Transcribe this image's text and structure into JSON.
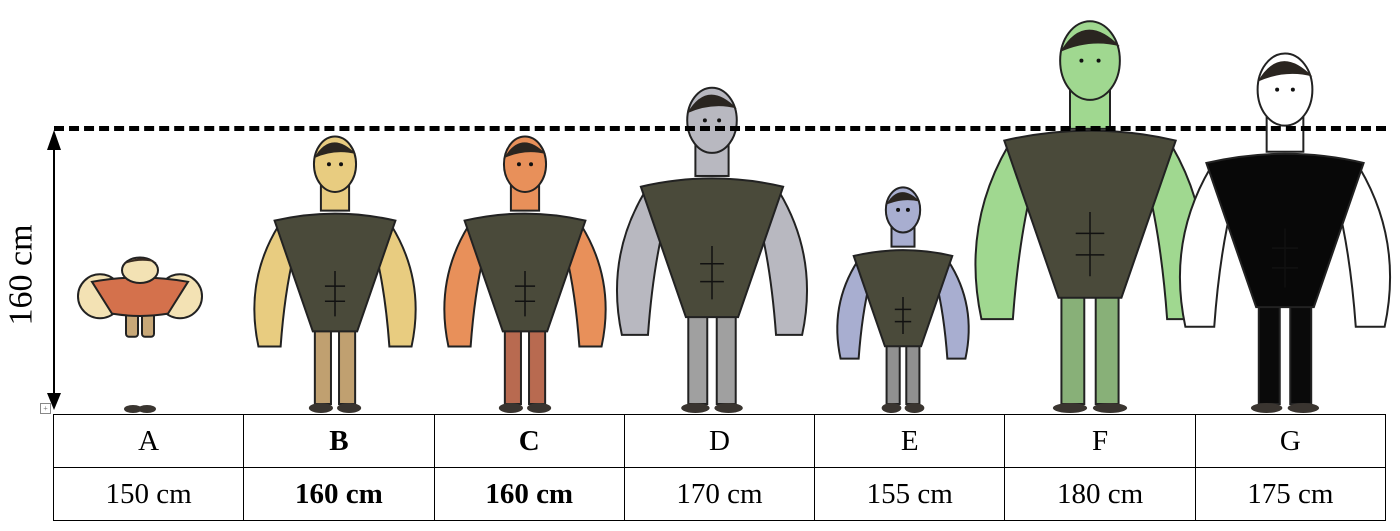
{
  "axis_label": "160 cm",
  "figures": [
    {
      "letter": "A",
      "height": "150 cm",
      "bold": false,
      "skin": "#f3e2b4",
      "shirt": "#d4714c",
      "pants": "#c8a878"
    },
    {
      "letter": "B",
      "height": "160 cm",
      "bold": true,
      "skin": "#e8cc80",
      "shirt": "#4a4a3a",
      "pants": "#c0a070"
    },
    {
      "letter": "C",
      "height": "160 cm",
      "bold": true,
      "skin": "#e8905a",
      "shirt": "#4a4a3a",
      "pants": "#b86a50"
    },
    {
      "letter": "D",
      "height": "170 cm",
      "bold": false,
      "skin": "#b8b8c0",
      "shirt": "#4a4a3a",
      "pants": "#a0a0a0"
    },
    {
      "letter": "E",
      "height": "155 cm",
      "bold": false,
      "skin": "#a8aed0",
      "shirt": "#4a4a3a",
      "pants": "#909090"
    },
    {
      "letter": "F",
      "height": "180 cm",
      "bold": false,
      "skin": "#a0d890",
      "shirt": "#4a4a3a",
      "pants": "#88b078"
    },
    {
      "letter": "G",
      "height": "175 cm",
      "bold": false,
      "skin": "#ffffff",
      "shirt": "#080808",
      "pants": "#0a0a0a"
    }
  ]
}
